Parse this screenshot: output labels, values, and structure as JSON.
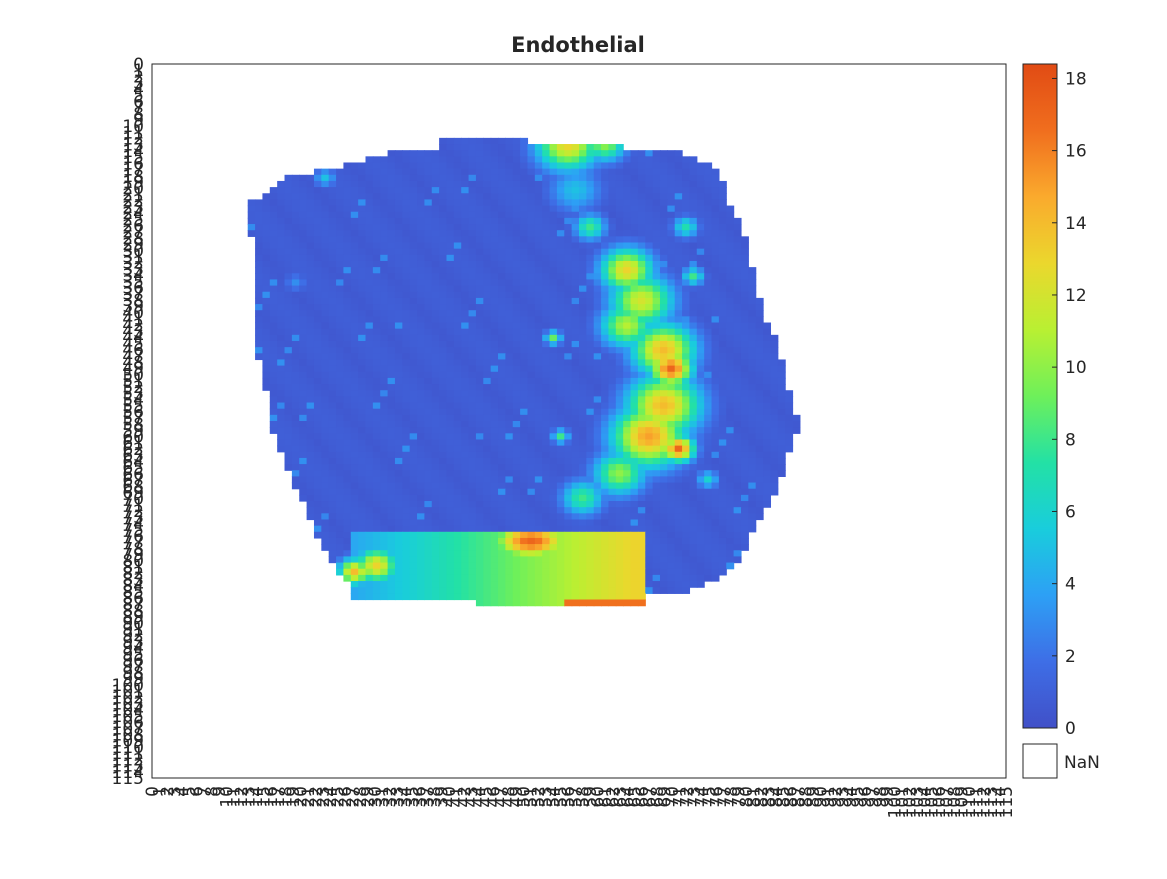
{
  "chart_data": {
    "type": "heatmap",
    "title": "Endothelial",
    "xlabel": "",
    "ylabel": "",
    "x_ticks": {
      "start": 0,
      "end": 115,
      "step": 1
    },
    "y_ticks": {
      "start": 0,
      "end": 115,
      "step": 1
    },
    "xlim": [
      0,
      115
    ],
    "ylim": [
      0,
      115
    ],
    "grid": false,
    "colormap": "turbo",
    "colorbar": {
      "min": 0,
      "max": 18.4,
      "ticks": [
        "0",
        "2",
        "4",
        "6",
        "8",
        "10",
        "12",
        "14",
        "16",
        "18"
      ],
      "nan_label": "NaN"
    },
    "tissue_region_rows": [
      {
        "row": 12,
        "x0": 39,
        "x1": 50
      },
      {
        "row": 13,
        "x0": 39,
        "x1": 63
      },
      {
        "row": 14,
        "x0": 32,
        "x1": 71
      },
      {
        "row": 16,
        "x0": 26,
        "x1": 75
      },
      {
        "row": 18,
        "x0": 18,
        "x1": 76
      },
      {
        "row": 20,
        "x0": 16,
        "x1": 77
      },
      {
        "row": 22,
        "x0": 13,
        "x1": 77
      },
      {
        "row": 25,
        "x0": 13,
        "x1": 79
      },
      {
        "row": 30,
        "x0": 14,
        "x1": 80
      },
      {
        "row": 35,
        "x0": 14,
        "x1": 81
      },
      {
        "row": 40,
        "x0": 14,
        "x1": 82
      },
      {
        "row": 45,
        "x0": 14,
        "x1": 84
      },
      {
        "row": 50,
        "x0": 15,
        "x1": 85
      },
      {
        "row": 55,
        "x0": 16,
        "x1": 86
      },
      {
        "row": 58,
        "x0": 16,
        "x1": 87
      },
      {
        "row": 61,
        "x0": 17,
        "x1": 86
      },
      {
        "row": 64,
        "x0": 18,
        "x1": 85
      },
      {
        "row": 68,
        "x0": 19,
        "x1": 84
      },
      {
        "row": 72,
        "x0": 21,
        "x1": 82
      },
      {
        "row": 76,
        "x0": 22,
        "x1": 80
      },
      {
        "row": 80,
        "x0": 24,
        "x1": 79
      },
      {
        "row": 83,
        "x0": 26,
        "x1": 76
      },
      {
        "row": 85,
        "x0": 27,
        "x1": 72
      },
      {
        "row": 86,
        "x0": 27,
        "x1": 66
      },
      {
        "row": 87,
        "x0": 44,
        "x1": 66
      }
    ],
    "hotspots": [
      {
        "x": 56,
        "y": 12.5,
        "r": 3,
        "v": 13
      },
      {
        "x": 61,
        "y": 12.5,
        "r": 2,
        "v": 10
      },
      {
        "x": 57,
        "y": 20,
        "r": 2.5,
        "v": 5
      },
      {
        "x": 59,
        "y": 26,
        "r": 1.5,
        "v": 8
      },
      {
        "x": 72,
        "y": 26,
        "r": 1.2,
        "v": 7
      },
      {
        "x": 64,
        "y": 33,
        "r": 2.5,
        "v": 13
      },
      {
        "x": 66,
        "y": 38,
        "r": 3,
        "v": 12
      },
      {
        "x": 64,
        "y": 42,
        "r": 2.5,
        "v": 11
      },
      {
        "x": 73,
        "y": 34,
        "r": 1,
        "v": 8
      },
      {
        "x": 54,
        "y": 44,
        "r": 0.8,
        "v": 9
      },
      {
        "x": 69,
        "y": 46,
        "r": 3,
        "v": 14
      },
      {
        "x": 70,
        "y": 49,
        "r": 2,
        "v": 17
      },
      {
        "x": 69,
        "y": 55,
        "r": 3.5,
        "v": 14
      },
      {
        "x": 67,
        "y": 60,
        "r": 3.5,
        "v": 15
      },
      {
        "x": 71,
        "y": 62,
        "r": 1.5,
        "v": 17
      },
      {
        "x": 63,
        "y": 66,
        "r": 2.5,
        "v": 10
      },
      {
        "x": 58,
        "y": 70,
        "r": 2,
        "v": 8
      },
      {
        "x": 55,
        "y": 60,
        "r": 0.8,
        "v": 8
      },
      {
        "x": 75,
        "y": 67,
        "r": 1,
        "v": 6
      },
      {
        "x": 30,
        "y": 81,
        "r": 2,
        "v": 13
      },
      {
        "x": 27,
        "y": 82,
        "r": 1.5,
        "v": 14
      },
      {
        "x": 23,
        "y": 18,
        "r": 1,
        "v": 5
      },
      {
        "x": 19,
        "y": 35,
        "r": 1,
        "v": 3
      }
    ],
    "bottom_gradient": {
      "rows": [
        76,
        88
      ],
      "left": {
        "x": 27,
        "v": 4
      },
      "right": {
        "x": 65,
        "v": 13
      },
      "peak": {
        "x": 51,
        "y": 77,
        "v": 17
      }
    }
  }
}
